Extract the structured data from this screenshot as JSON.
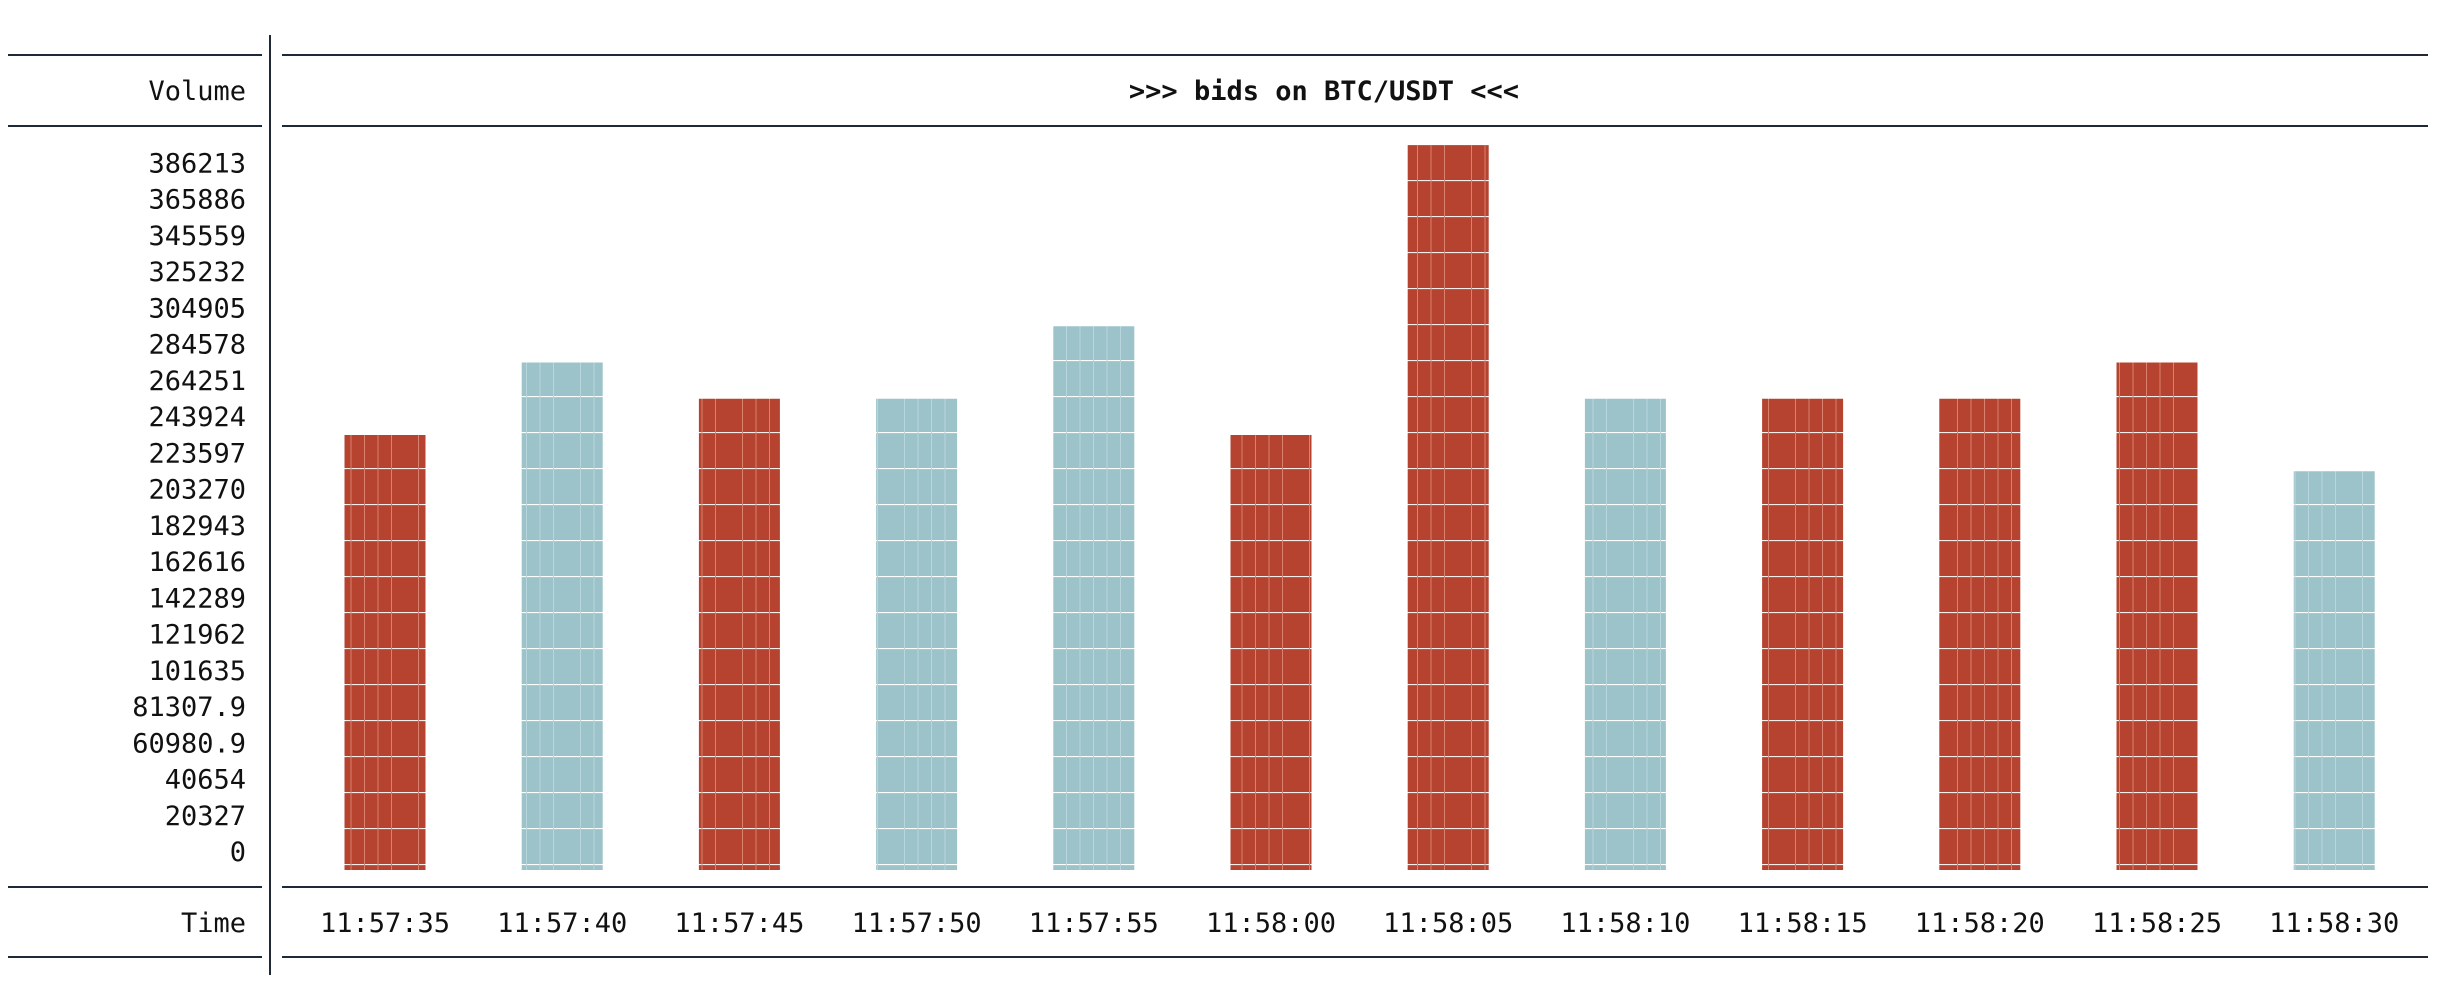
{
  "chart_data": {
    "type": "bar",
    "title": ">>> bids on BTC/USDT <<<",
    "ylabel": "Volume",
    "xlabel": "Time",
    "categories": [
      "11:57:35",
      "11:57:40",
      "11:57:45",
      "11:57:50",
      "11:57:55",
      "11:58:00",
      "11:58:05",
      "11:58:10",
      "11:58:15",
      "11:58:20",
      "11:58:25",
      "11:58:30"
    ],
    "values": [
      243924,
      284578,
      264251,
      264251,
      304905,
      243924,
      406540,
      264251,
      264251,
      264251,
      284578,
      223597
    ],
    "bar_colors": [
      "#b5432f",
      "#9cc3ca",
      "#b5432f",
      "#9cc3ca",
      "#9cc3ca",
      "#b5432f",
      "#b5432f",
      "#9cc3ca",
      "#b5432f",
      "#b5432f",
      "#b5432f",
      "#9cc3ca"
    ],
    "ytick_labels": [
      "386213",
      "365886",
      "345559",
      "325232",
      "304905",
      "284578",
      "264251",
      "243924",
      "223597",
      "203270",
      "182943",
      "162616",
      "142289",
      "121962",
      "101635",
      "81307.9",
      "60980.9",
      "40654",
      "20327",
      "0"
    ],
    "ytick_values": [
      386213,
      365886,
      345559,
      325232,
      304905,
      284578,
      264251,
      243924,
      223597,
      203270,
      182943,
      162616,
      142289,
      121962,
      101635,
      81307.9,
      60980.9,
      40654,
      20327,
      0
    ],
    "ylim": [
      0,
      406540
    ],
    "grid": false,
    "legend": "none"
  },
  "colors": {
    "ask_bar": "#b5432f",
    "bid_bar": "#9cc3ca",
    "rule": "#1f2937"
  }
}
